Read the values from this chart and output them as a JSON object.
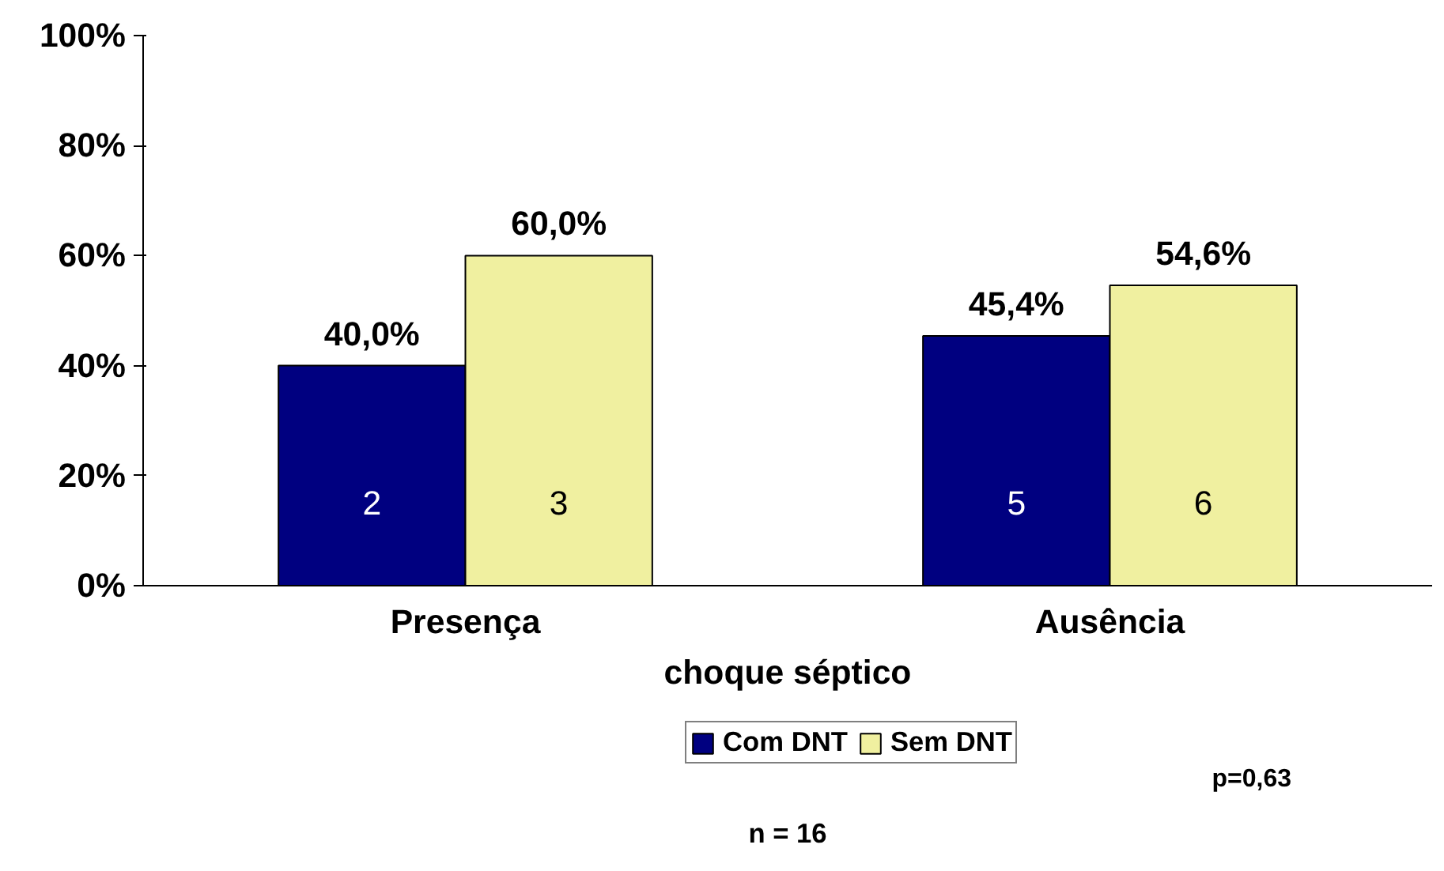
{
  "chart_data": {
    "type": "bar",
    "xlabel": "choque séptico",
    "categories": [
      "Presença",
      "Ausência"
    ],
    "series": [
      {
        "name": "Com DNT",
        "color": "#000080",
        "values": [
          40.0,
          45.4
        ],
        "value_labels": [
          "40,0%",
          "45,4%"
        ]
      },
      {
        "name": "Sem DNT",
        "color": "#f0f0a0",
        "values": [
          60.0,
          54.6
        ],
        "value_labels": [
          "60,0%",
          "54,6%"
        ]
      }
    ],
    "ylim": [
      0,
      100
    ],
    "yticks": [
      {
        "value": 0,
        "label": "0%"
      },
      {
        "value": 20,
        "label": "20%"
      },
      {
        "value": 40,
        "label": "40%"
      },
      {
        "value": 60,
        "label": "60%"
      },
      {
        "value": 80,
        "label": "80%"
      },
      {
        "value": 100,
        "label": "100%"
      }
    ],
    "annotations": [
      {
        "text": "2",
        "x": "Presença",
        "y": 13
      },
      {
        "text": "3",
        "x": "Presença",
        "y": 13
      },
      {
        "text": "5",
        "x": "Ausência",
        "y": 13
      },
      {
        "text": "6",
        "x": "Ausência",
        "y": 13
      },
      "p=0,63",
      "n = 16"
    ],
    "legend": "bottom",
    "grid": false
  }
}
